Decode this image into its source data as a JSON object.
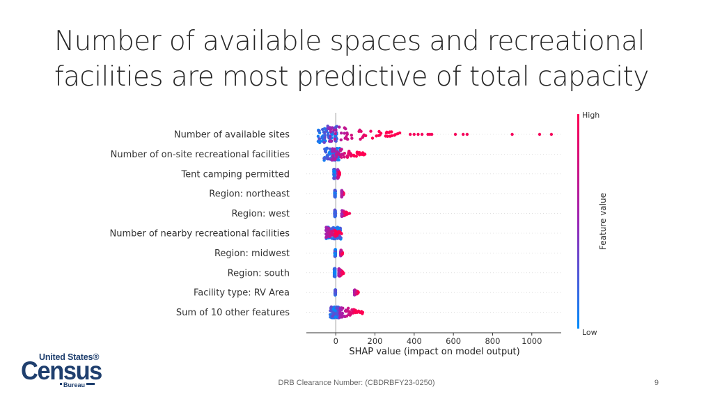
{
  "slide": {
    "title": "Number of available spaces and recreational facilities are most predictive of total capacity",
    "footer": "DRB Clearance Number: (CBDRBFY23-0250)",
    "page_number": "9"
  },
  "logo": {
    "line1": "United States®",
    "line2": "Census",
    "line3": "Bureau",
    "color": "#1f3f6e"
  },
  "chart_data": {
    "type": "scatter",
    "subtype": "shap_beeswarm",
    "xlabel": "SHAP value (impact on model output)",
    "xlim": [
      -150,
      1150
    ],
    "xticks": [
      0,
      200,
      400,
      600,
      800,
      1000
    ],
    "colorbar": {
      "title": "Feature value",
      "high": "High",
      "low": "Low",
      "low_color": "#008bfb",
      "high_color": "#ff0052"
    },
    "features": [
      {
        "name": "Number of available sites",
        "core": [
          -90,
          10
        ],
        "spread": [
          -40,
          120
        ],
        "tail_max": 330,
        "width": 12,
        "outliers": [
          380,
          400,
          420,
          440,
          470,
          480,
          490,
          610,
          650,
          670,
          900,
          1040,
          1100
        ]
      },
      {
        "name": "Number of on-site recreational facilities",
        "core": [
          -60,
          20
        ],
        "spread": [
          -20,
          150
        ],
        "tail_max": 150,
        "width": 9,
        "outliers": []
      },
      {
        "name": "Tent camping permitted",
        "core": [
          -10,
          -5
        ],
        "spread": [
          10,
          20
        ],
        "tail_max": 20,
        "width": 7,
        "outliers": []
      },
      {
        "name": "Region: northeast",
        "core": [
          -6,
          -2
        ],
        "spread": [
          30,
          40
        ],
        "tail_max": 40,
        "width": 5,
        "outliers": []
      },
      {
        "name": "Region: west",
        "core": [
          -6,
          -2
        ],
        "spread": [
          30,
          60
        ],
        "tail_max": 60,
        "width": 5,
        "outliers": [
          70
        ]
      },
      {
        "name": "Number of nearby recreational facilities",
        "core": [
          -50,
          30
        ],
        "spread": [
          -50,
          30
        ],
        "tail_max": 30,
        "width": 9,
        "outliers": []
      },
      {
        "name": "Region: midwest",
        "core": [
          -5,
          -1
        ],
        "spread": [
          25,
          35
        ],
        "tail_max": 35,
        "width": 5,
        "outliers": []
      },
      {
        "name": "Region: south",
        "core": [
          -8,
          -3
        ],
        "spread": [
          15,
          40
        ],
        "tail_max": 40,
        "width": 6,
        "outliers": []
      },
      {
        "name": "Facility type: RV Area",
        "core": [
          -4,
          -1
        ],
        "spread": [
          95,
          115
        ],
        "tail_max": 115,
        "width": 4,
        "outliers": []
      },
      {
        "name": "Sum of 10 other features",
        "core": [
          -30,
          20
        ],
        "spread": [
          20,
          150
        ],
        "tail_max": 150,
        "width": 8,
        "outliers": []
      }
    ]
  }
}
